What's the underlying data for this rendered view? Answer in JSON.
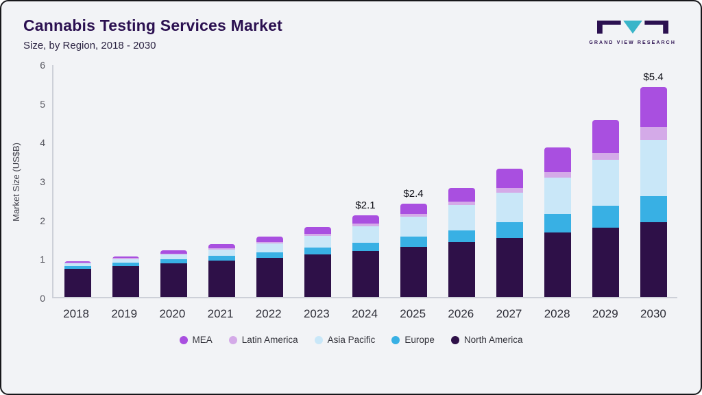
{
  "header": {
    "title": "Cannabis Testing Services Market",
    "subtitle": "Size, by Region, 2018 - 2030",
    "logo_text": "GRAND VIEW RESEARCH"
  },
  "chart_data": {
    "type": "bar",
    "stacked": true,
    "title": "Cannabis Testing Services Market",
    "subtitle": "Size, by Region, 2018 - 2030",
    "xlabel": "",
    "ylabel": "Market Size (US$B)",
    "ylim": [
      0,
      6
    ],
    "yticks": [
      0,
      1,
      2,
      3,
      4,
      5,
      6
    ],
    "grid": false,
    "legend_position": "bottom",
    "categories": [
      "2018",
      "2019",
      "2020",
      "2021",
      "2022",
      "2023",
      "2024",
      "2025",
      "2026",
      "2027",
      "2028",
      "2029",
      "2030"
    ],
    "series": [
      {
        "name": "North America",
        "color": "#2e1048",
        "values": [
          0.72,
          0.8,
          0.87,
          0.94,
          1.01,
          1.1,
          1.19,
          1.29,
          1.41,
          1.52,
          1.66,
          1.79,
          1.92
        ]
      },
      {
        "name": "Europe",
        "color": "#38b0e4",
        "values": [
          0.08,
          0.09,
          0.1,
          0.12,
          0.14,
          0.17,
          0.21,
          0.27,
          0.31,
          0.4,
          0.47,
          0.56,
          0.67
        ]
      },
      {
        "name": "Asia Pacific",
        "color": "#c9e7f8",
        "values": [
          0.07,
          0.09,
          0.12,
          0.16,
          0.22,
          0.3,
          0.42,
          0.5,
          0.64,
          0.76,
          0.95,
          1.18,
          1.45
        ]
      },
      {
        "name": "Latin America",
        "color": "#d4aae8",
        "values": [
          0.02,
          0.03,
          0.03,
          0.04,
          0.05,
          0.06,
          0.07,
          0.08,
          0.1,
          0.12,
          0.14,
          0.18,
          0.33
        ]
      },
      {
        "name": "MEA",
        "color": "#a94fe0",
        "values": [
          0.03,
          0.04,
          0.08,
          0.09,
          0.13,
          0.17,
          0.21,
          0.26,
          0.34,
          0.5,
          0.63,
          0.84,
          1.03
        ]
      }
    ],
    "annotations": [
      {
        "category": "2024",
        "text": "$2.1"
      },
      {
        "category": "2025",
        "text": "$2.4"
      },
      {
        "category": "2030",
        "text": "$5.4"
      }
    ],
    "legend": [
      "MEA",
      "Latin America",
      "Asia Pacific",
      "Europe",
      "North America"
    ]
  }
}
